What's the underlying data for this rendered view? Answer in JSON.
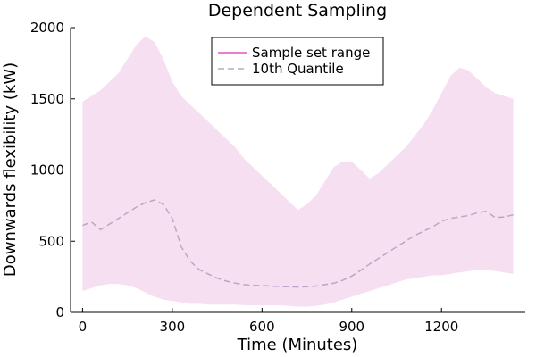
{
  "chart_data": {
    "type": "area",
    "title": "Dependent Sampling",
    "xlabel": "Time (Minutes)",
    "ylabel": "Downwards flexibility (kW)",
    "xlim": [
      -40,
      1480
    ],
    "ylim": [
      0,
      2000
    ],
    "xticks": [
      0,
      300,
      600,
      900,
      1200
    ],
    "yticks": [
      0,
      500,
      1000,
      1500,
      2000
    ],
    "grid": false,
    "legend_position": "top-center",
    "colors": {
      "range_fill": "#f7dff2",
      "range_line": "#e052c2",
      "quantile_line": "#b8a8c8"
    },
    "legend": [
      {
        "label": "Sample set range",
        "style": "solid",
        "color": "#e052c2"
      },
      {
        "label": "10th Quantile",
        "style": "dashed",
        "color": "#b8a8c8"
      }
    ],
    "x": [
      0,
      30,
      60,
      90,
      120,
      150,
      180,
      210,
      240,
      270,
      300,
      330,
      360,
      390,
      420,
      450,
      480,
      510,
      540,
      570,
      600,
      630,
      660,
      690,
      720,
      750,
      780,
      810,
      840,
      870,
      900,
      930,
      960,
      990,
      1020,
      1050,
      1080,
      1110,
      1140,
      1170,
      1200,
      1230,
      1260,
      1290,
      1320,
      1350,
      1380,
      1410,
      1440
    ],
    "series": [
      {
        "name": "Sample set range",
        "upper": [
          1480,
          1520,
          1560,
          1620,
          1680,
          1780,
          1880,
          1940,
          1900,
          1780,
          1620,
          1520,
          1460,
          1400,
          1340,
          1280,
          1220,
          1160,
          1080,
          1020,
          960,
          900,
          840,
          780,
          720,
          760,
          820,
          920,
          1020,
          1060,
          1060,
          1000,
          940,
          980,
          1040,
          1100,
          1160,
          1240,
          1320,
          1420,
          1540,
          1660,
          1720,
          1700,
          1640,
          1580,
          1540,
          1520,
          1500
        ],
        "lower": [
          150,
          170,
          190,
          200,
          200,
          190,
          170,
          140,
          110,
          90,
          80,
          70,
          60,
          60,
          55,
          55,
          55,
          55,
          50,
          50,
          50,
          50,
          50,
          45,
          40,
          40,
          45,
          55,
          70,
          90,
          110,
          130,
          150,
          170,
          190,
          210,
          230,
          240,
          250,
          260,
          260,
          270,
          280,
          290,
          300,
          300,
          290,
          280,
          270
        ]
      },
      {
        "name": "10th Quantile",
        "values": [
          610,
          635,
          580,
          620,
          660,
          700,
          740,
          770,
          790,
          760,
          660,
          460,
          360,
          300,
          270,
          240,
          220,
          205,
          195,
          190,
          188,
          185,
          182,
          180,
          178,
          180,
          185,
          195,
          205,
          225,
          255,
          295,
          340,
          380,
          420,
          460,
          500,
          540,
          570,
          600,
          640,
          660,
          670,
          680,
          700,
          710,
          665,
          670,
          685
        ]
      }
    ]
  }
}
